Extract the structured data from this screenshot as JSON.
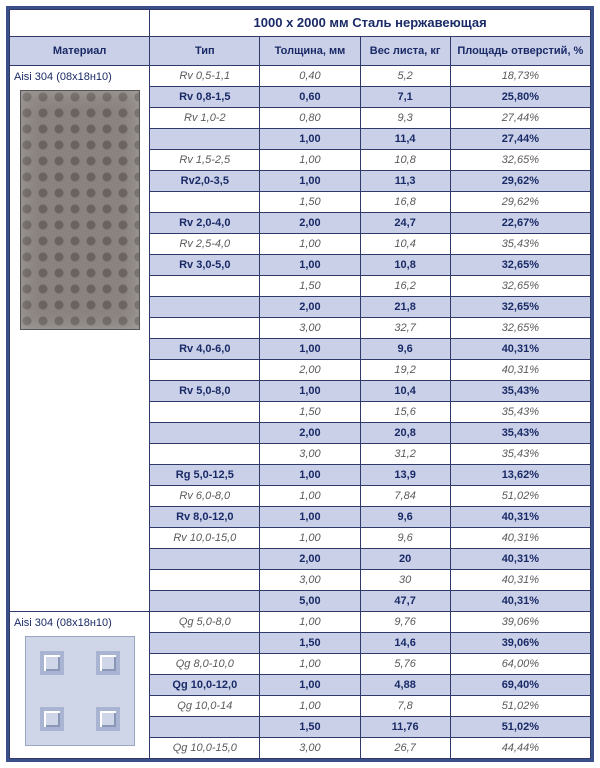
{
  "title": "1000 х 2000 мм Сталь нержавеющая",
  "columns": [
    "Материал",
    "Тип",
    "Толщина, мм",
    "Вес листа, кг",
    "Площадь отверстий, %"
  ],
  "sections": [
    {
      "material": "Aisi 304 (08х18н10)",
      "image": "perforated-round",
      "rows": [
        {
          "type": "Rv 0,5-1,1",
          "th": "0,40",
          "wt": "5,2",
          "pa": "18,73%",
          "hl": false
        },
        {
          "type": "Rv 0,8-1,5",
          "th": "0,60",
          "wt": "7,1",
          "pa": "25,80%",
          "hl": true
        },
        {
          "type": "Rv 1,0-2",
          "th": "0,80",
          "wt": "9,3",
          "pa": "27,44%",
          "hl": false
        },
        {
          "type": "",
          "th": "1,00",
          "wt": "11,4",
          "pa": "27,44%",
          "hl": true
        },
        {
          "type": "Rv 1,5-2,5",
          "th": "1,00",
          "wt": "10,8",
          "pa": "32,65%",
          "hl": false
        },
        {
          "type": "Rv2,0-3,5",
          "th": "1,00",
          "wt": "11,3",
          "pa": "29,62%",
          "hl": true
        },
        {
          "type": "",
          "th": "1,50",
          "wt": "16,8",
          "pa": "29,62%",
          "hl": false
        },
        {
          "type": "Rv 2,0-4,0",
          "th": "2,00",
          "wt": "24,7",
          "pa": "22,67%",
          "hl": true
        },
        {
          "type": "Rv 2,5-4,0",
          "th": "1,00",
          "wt": "10,4",
          "pa": "35,43%",
          "hl": false
        },
        {
          "type": "Rv 3,0-5,0",
          "th": "1,00",
          "wt": "10,8",
          "pa": "32,65%",
          "hl": true
        },
        {
          "type": "",
          "th": "1,50",
          "wt": "16,2",
          "pa": "32,65%",
          "hl": false
        },
        {
          "type": "",
          "th": "2,00",
          "wt": "21,8",
          "pa": "32,65%",
          "hl": true
        },
        {
          "type": "",
          "th": "3,00",
          "wt": "32,7",
          "pa": "32,65%",
          "hl": false
        },
        {
          "type": "Rv 4,0-6,0",
          "th": "1,00",
          "wt": "9,6",
          "pa": "40,31%",
          "hl": true
        },
        {
          "type": "",
          "th": "2,00",
          "wt": "19,2",
          "pa": "40,31%",
          "hl": false
        },
        {
          "type": "Rv 5,0-8,0",
          "th": "1,00",
          "wt": "10,4",
          "pa": "35,43%",
          "hl": true
        },
        {
          "type": "",
          "th": "1,50",
          "wt": "15,6",
          "pa": "35,43%",
          "hl": false
        },
        {
          "type": "",
          "th": "2,00",
          "wt": "20,8",
          "pa": "35,43%",
          "hl": true
        },
        {
          "type": "",
          "th": "3,00",
          "wt": "31,2",
          "pa": "35,43%",
          "hl": false
        },
        {
          "type": "Rg 5,0-12,5",
          "th": "1,00",
          "wt": "13,9",
          "pa": "13,62%",
          "hl": true
        },
        {
          "type": "Rv 6,0-8,0",
          "th": "1,00",
          "wt": "7,84",
          "pa": "51,02%",
          "hl": false
        },
        {
          "type": "Rv 8,0-12,0",
          "th": "1,00",
          "wt": "9,6",
          "pa": "40,31%",
          "hl": true
        },
        {
          "type": "Rv 10,0-15,0",
          "th": "1,00",
          "wt": "9,6",
          "pa": "40,31%",
          "hl": false
        },
        {
          "type": "",
          "th": "2,00",
          "wt": "20",
          "pa": "40,31%",
          "hl": true
        },
        {
          "type": "",
          "th": "3,00",
          "wt": "30",
          "pa": "40,31%",
          "hl": false
        },
        {
          "type": "",
          "th": "5,00",
          "wt": "47,7",
          "pa": "40,31%",
          "hl": true
        }
      ]
    },
    {
      "material": "Aisi 304 (08х18н10)",
      "image": "perforated-square",
      "rows": [
        {
          "type": "Qg 5,0-8,0",
          "th": "1,00",
          "wt": "9,76",
          "pa": "39,06%",
          "hl": false
        },
        {
          "type": "",
          "th": "1,50",
          "wt": "14,6",
          "pa": "39,06%",
          "hl": true
        },
        {
          "type": "Qg 8,0-10,0",
          "th": "1,00",
          "wt": "5,76",
          "pa": "64,00%",
          "hl": false
        },
        {
          "type": "Qg 10,0-12,0",
          "th": "1,00",
          "wt": "4,88",
          "pa": "69,40%",
          "hl": true
        },
        {
          "type": "Qg 10,0-14",
          "th": "1,00",
          "wt": "7,8",
          "pa": "51,02%",
          "hl": false
        },
        {
          "type": "",
          "th": "1,50",
          "wt": "11,76",
          "pa": "51,02%",
          "hl": true
        },
        {
          "type": "Qg 10,0-15,0",
          "th": "3,00",
          "wt": "26,7",
          "pa": "44,44%",
          "hl": false
        }
      ]
    }
  ],
  "style": {
    "hl_bg": "#c9d0e8",
    "row_bg": "#ffffff",
    "hl_color": "#1a2a66",
    "dim_color": "#5a5a5a",
    "header_bg": "#c9d0e8",
    "border": "#2f3a6b"
  }
}
